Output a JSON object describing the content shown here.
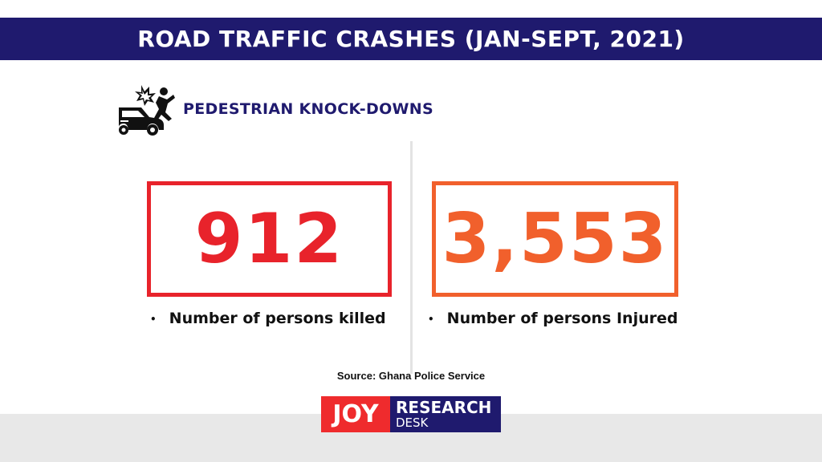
{
  "header": {
    "title": "ROAD TRAFFIC CRASHES (JAN-SEPT, 2021)"
  },
  "section": {
    "title": "PEDESTRIAN KNOCK-DOWNS",
    "icon": "pedestrian-crash-icon"
  },
  "stats": [
    {
      "value": "912",
      "label": "Number of persons killed",
      "color": "#e8232b"
    },
    {
      "value": "3,553",
      "label": "Number of persons Injured",
      "color": "#f1602c"
    }
  ],
  "bullet": "•",
  "source": "Source: Ghana Police Service",
  "logo": {
    "word": "JOY",
    "line1": "RESEARCH",
    "line2": "DESK"
  },
  "colors": {
    "navy": "#1f1a6e",
    "red": "#e8232b",
    "orange": "#f1602c"
  }
}
